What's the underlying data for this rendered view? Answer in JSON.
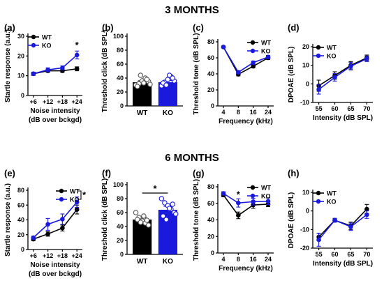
{
  "figure": {
    "sections": [
      "3 MONTHS",
      "6 MONTHS"
    ]
  },
  "colors": {
    "WT": "#000000",
    "KO": "#1a1adc"
  },
  "chart_data": [
    {
      "id": "a",
      "panel": "(a)",
      "type": "line",
      "ylabel": "Startle response (a.u.)",
      "xlabel": "Noise intensity",
      "xlabel2": "(dB over bckgd)",
      "categories": [
        "+6",
        "+12",
        "+18",
        "+24"
      ],
      "ylim": [
        0,
        30
      ],
      "yticks": [
        0,
        10,
        20,
        30
      ],
      "legend": {
        "position": "top-left",
        "entries": [
          "WT",
          "KO"
        ]
      },
      "series": [
        {
          "name": "WT",
          "values": [
            11,
            12.5,
            12.5,
            13.5
          ],
          "err": [
            0.8,
            0.8,
            0.8,
            1
          ]
        },
        {
          "name": "KO",
          "values": [
            11,
            13,
            14,
            20.5
          ],
          "err": [
            0.8,
            1,
            1,
            2
          ]
        }
      ],
      "annotations": [
        {
          "text": "*",
          "at": 3,
          "y": 24
        }
      ]
    },
    {
      "id": "b",
      "panel": "(b)",
      "type": "bar",
      "ylabel": "Threshold click (dB SPL)",
      "categories": [
        "WT",
        "KO"
      ],
      "ylim": [
        0,
        100
      ],
      "yticks": [
        0,
        20,
        40,
        60,
        80,
        100
      ],
      "values": [
        34,
        34
      ],
      "err": [
        2,
        2.5
      ],
      "points": [
        [
          30,
          32,
          36,
          40,
          35,
          28,
          44,
          33,
          38,
          31
        ],
        [
          29,
          34,
          38,
          42,
          36,
          33,
          30,
          44,
          40
        ]
      ]
    },
    {
      "id": "c",
      "panel": "(c)",
      "type": "line",
      "ylabel": "Threshold tone (dB SPL)",
      "xlabel": "Frequency (kHz)",
      "categories": [
        "4",
        "8",
        "16",
        "24"
      ],
      "ylim": [
        0,
        80
      ],
      "yticks": [
        0,
        20,
        40,
        60,
        80
      ],
      "legend": {
        "position": "top-right",
        "entries": [
          "WT",
          "KO"
        ]
      },
      "series": [
        {
          "name": "WT",
          "values": [
            73.5,
            39.5,
            49.5,
            60
          ],
          "err": [
            1,
            2,
            2,
            2
          ]
        },
        {
          "name": "KO",
          "values": [
            73.5,
            42,
            54,
            61
          ],
          "err": [
            1,
            2,
            2,
            2
          ]
        }
      ]
    },
    {
      "id": "d",
      "panel": "(d)",
      "type": "line",
      "ylabel": "DPOAE (dB SPL)",
      "xlabel": "Intensity (dB SPL)",
      "categories": [
        "55",
        "60",
        "65",
        "70"
      ],
      "ylim": [
        -10,
        20
      ],
      "yticks": [
        -10,
        0,
        10,
        20
      ],
      "legend": {
        "position": "top-left",
        "entries": [
          "WT",
          "KO"
        ]
      },
      "series": [
        {
          "name": "WT",
          "values": [
            -1,
            4.5,
            10,
            14
          ],
          "err": [
            3,
            2,
            2,
            1.5
          ]
        },
        {
          "name": "KO",
          "values": [
            -3,
            3.5,
            9.5,
            13.5
          ],
          "err": [
            2.5,
            2,
            2,
            1.5
          ]
        }
      ]
    },
    {
      "id": "e",
      "panel": "(e)",
      "type": "line",
      "ylabel": "Startle response (a.u.)",
      "xlabel": "Noise intensity",
      "xlabel2": "(dB over bckgd)",
      "categories": [
        "+6",
        "+12",
        "+18",
        "+24"
      ],
      "ylim": [
        0,
        80
      ],
      "yticks": [
        0,
        20,
        40,
        60,
        80
      ],
      "legend": {
        "position": "top-right",
        "entries": [
          "WT",
          "KO"
        ]
      },
      "series": [
        {
          "name": "WT",
          "values": [
            14,
            21,
            29,
            54
          ],
          "err": [
            2,
            3,
            4,
            6
          ]
        },
        {
          "name": "KO",
          "values": [
            16,
            34,
            41,
            64
          ],
          "err": [
            2,
            8,
            7,
            7
          ]
        }
      ],
      "annotations": [
        {
          "text": "*",
          "legend_bracket": true
        }
      ]
    },
    {
      "id": "f",
      "panel": "(f)",
      "type": "bar",
      "ylabel": "Threshold click (dB SPL)",
      "categories": [
        "WT",
        "KO"
      ],
      "ylim": [
        0,
        100
      ],
      "yticks": [
        0,
        20,
        40,
        60,
        80,
        100
      ],
      "values": [
        50,
        64
      ],
      "err": [
        3,
        5
      ],
      "points": [
        [
          60,
          53,
          48,
          45,
          42,
          50,
          46,
          55,
          49
        ],
        [
          80,
          74,
          70,
          65,
          60,
          55,
          50,
          66,
          72,
          58
        ]
      ],
      "annotations": [
        {
          "text": "*",
          "bracket": [
            0,
            1
          ],
          "y": 88
        }
      ]
    },
    {
      "id": "g",
      "panel": "(g)",
      "type": "line",
      "ylabel": "Threshold tone (dB SPL)",
      "xlabel": "Frequency (kHz)",
      "categories": [
        "4",
        "8",
        "16",
        "24"
      ],
      "ylim": [
        0,
        80
      ],
      "yticks": [
        0,
        20,
        40,
        60,
        80
      ],
      "legend": {
        "position": "top-right",
        "entries": [
          "WT",
          "KO"
        ]
      },
      "series": [
        {
          "name": "WT",
          "values": [
            70,
            45.5,
            58,
            59
          ],
          "err": [
            2,
            4,
            4,
            3
          ]
        },
        {
          "name": "KO",
          "values": [
            72,
            60.5,
            62,
            62.5
          ],
          "err": [
            2,
            5,
            4,
            4
          ]
        }
      ],
      "annotations": [
        {
          "text": "*",
          "at": 1,
          "y": 67
        }
      ]
    },
    {
      "id": "h",
      "panel": "(h)",
      "type": "line",
      "ylabel": "DPOAE (dB SPL)",
      "xlabel": "Intensity (dB SPL)",
      "categories": [
        "55",
        "60",
        "65",
        "70"
      ],
      "ylim": [
        -20,
        10
      ],
      "yticks": [
        -20,
        -10,
        0,
        10
      ],
      "legend": {
        "position": "top-left",
        "entries": [
          "WT",
          "KO"
        ]
      },
      "series": [
        {
          "name": "WT",
          "values": [
            -14,
            -5,
            -8,
            1
          ],
          "err": [
            2,
            1,
            2,
            2.5
          ]
        },
        {
          "name": "KO",
          "values": [
            -15.5,
            -5,
            -8.5,
            -2
          ],
          "err": [
            3.5,
            1,
            2,
            2
          ]
        }
      ]
    }
  ]
}
